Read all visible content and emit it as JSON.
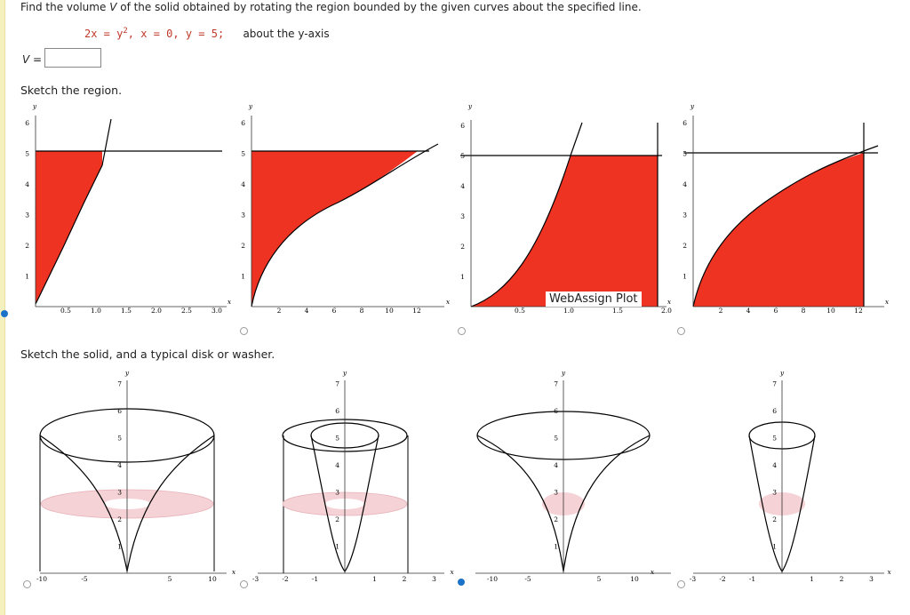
{
  "question": {
    "prefix": "Find the volume ",
    "var_v": "V",
    "suffix": " of the solid obtained by rotating the region bounded by the given curves about the specified line."
  },
  "equation": {
    "curve1_pre": "2x = y",
    "curve1_exp": "2",
    "curve1_post": ",",
    "x_eq": "x = 0,",
    "y_eq": "y = 5;",
    "about": "about the y-axis"
  },
  "answer": {
    "label": "V =",
    "value": ""
  },
  "sketch_region_heading": "Sketch the region.",
  "sketch_solid_heading": "Sketch the solid, and a typical disk or washer.",
  "overlay_label": "WebAssign Plot",
  "colors": {
    "region_fill": "#ee3322",
    "washer_fill": "#f5d2d6",
    "radio_selected": "#1a73c9"
  },
  "region_plots": [
    {
      "selected": true,
      "x_ticks": [
        "0.5",
        "1.0",
        "1.5",
        "2.0",
        "2.5",
        "3.0"
      ],
      "y_ticks": [
        "1",
        "2",
        "3",
        "4",
        "5",
        "6"
      ],
      "xlabel": "x",
      "ylabel": "y"
    },
    {
      "selected": false,
      "x_ticks": [
        "2",
        "4",
        "6",
        "8",
        "10",
        "12"
      ],
      "y_ticks": [
        "1",
        "2",
        "3",
        "4",
        "5",
        "6"
      ],
      "xlabel": "x",
      "ylabel": "y"
    },
    {
      "selected": false,
      "x_ticks": [
        "0.5",
        "1.0",
        "1.5",
        "2.0"
      ],
      "y_ticks": [
        "1",
        "2",
        "3",
        "4",
        "5",
        "6"
      ],
      "xlabel": "x",
      "ylabel": "y"
    },
    {
      "selected": false,
      "x_ticks": [
        "2",
        "4",
        "6",
        "8",
        "10",
        "12"
      ],
      "y_ticks": [
        "1",
        "2",
        "3",
        "4",
        "5",
        "6"
      ],
      "xlabel": "x",
      "ylabel": "y"
    }
  ],
  "solid_plots": [
    {
      "selected": false,
      "x_ticks": [
        "-10",
        "-5",
        "5",
        "10"
      ],
      "y_ticks": [
        "1",
        "2",
        "3",
        "4",
        "5",
        "6",
        "7"
      ],
      "xlabel": "x",
      "ylabel": "y"
    },
    {
      "selected": false,
      "x_ticks": [
        "-3",
        "-2",
        "-1",
        "1",
        "2",
        "3"
      ],
      "y_ticks": [
        "1",
        "2",
        "3",
        "4",
        "5",
        "6",
        "7"
      ],
      "xlabel": "x",
      "ylabel": "y"
    },
    {
      "selected": true,
      "x_ticks": [
        "-10",
        "-5",
        "5",
        "10"
      ],
      "y_ticks": [
        "1",
        "2",
        "3",
        "4",
        "5",
        "6",
        "7"
      ],
      "xlabel": "x",
      "ylabel": "y"
    },
    {
      "selected": false,
      "x_ticks": [
        "-3",
        "-2",
        "-1",
        "1",
        "2",
        "3"
      ],
      "y_ticks": [
        "1",
        "2",
        "3",
        "4",
        "5",
        "6",
        "7"
      ],
      "xlabel": "x",
      "ylabel": "y"
    }
  ]
}
